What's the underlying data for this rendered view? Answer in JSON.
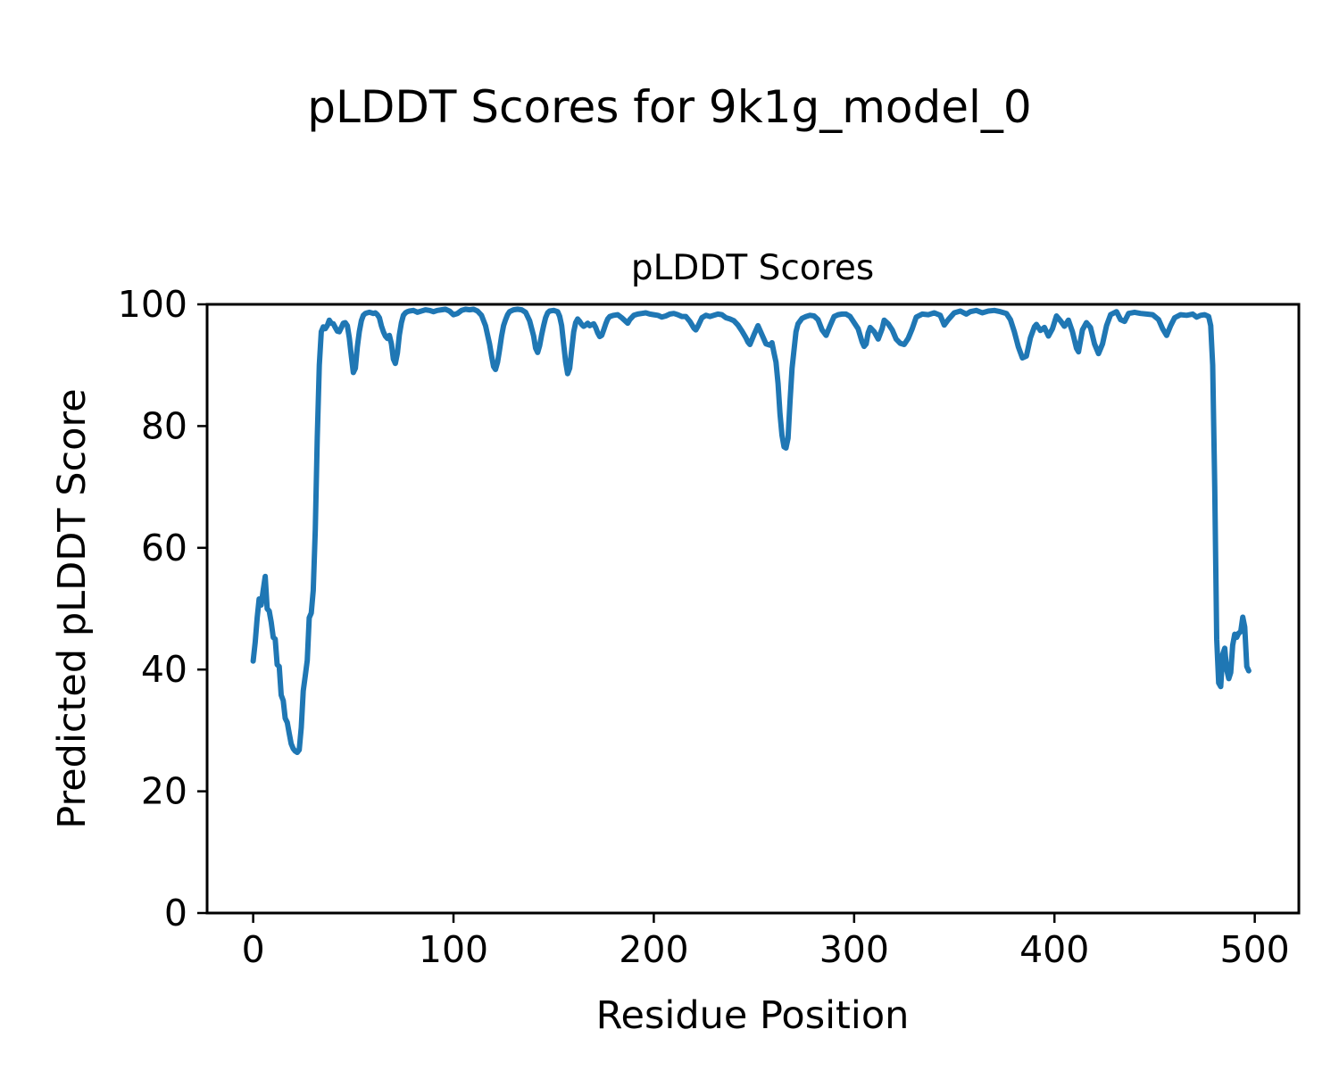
{
  "figure": {
    "suptitle": "pLDDT Scores for 9k1g_model_0",
    "background": "#ffffff",
    "text_color": "#000000"
  },
  "chart_data": {
    "type": "line",
    "title": "pLDDT Scores",
    "xlabel": "Residue Position",
    "ylabel": "Predicted pLDDT Score",
    "xlim": [
      -23,
      522
    ],
    "ylim": [
      0,
      100
    ],
    "xticks": [
      0,
      100,
      200,
      300,
      400,
      500
    ],
    "yticks": [
      0,
      20,
      40,
      60,
      80,
      100
    ],
    "grid": false,
    "legend": "none",
    "line_color": "#1f77b4",
    "line_width": 6,
    "series": [
      {
        "name": "pLDDT",
        "points": [
          [
            0,
            41.4
          ],
          [
            1,
            44.5
          ],
          [
            2,
            48.5
          ],
          [
            3,
            51.6
          ],
          [
            4,
            50.6
          ],
          [
            5,
            53.0
          ],
          [
            6,
            55.3
          ],
          [
            7,
            50.0
          ],
          [
            8,
            49.6
          ],
          [
            9,
            47.8
          ],
          [
            10,
            45.3
          ],
          [
            11,
            45.0
          ],
          [
            12,
            40.8
          ],
          [
            13,
            40.5
          ],
          [
            14,
            35.8
          ],
          [
            15,
            34.9
          ],
          [
            16,
            32.0
          ],
          [
            17,
            31.3
          ],
          [
            18,
            29.5
          ],
          [
            19,
            27.8
          ],
          [
            20,
            27.0
          ],
          [
            21,
            26.6
          ],
          [
            22,
            26.4
          ],
          [
            23,
            26.8
          ],
          [
            24,
            30.5
          ],
          [
            25,
            36.5
          ],
          [
            26,
            39.0
          ],
          [
            27,
            41.5
          ],
          [
            28,
            48.5
          ],
          [
            29,
            49.3
          ],
          [
            30,
            53.0
          ],
          [
            31,
            63.0
          ],
          [
            32,
            78.0
          ],
          [
            33,
            90.0
          ],
          [
            34,
            95.5
          ],
          [
            35,
            96.3
          ],
          [
            36,
            96.0
          ],
          [
            37,
            96.5
          ],
          [
            38,
            97.4
          ],
          [
            39,
            96.9
          ],
          [
            40,
            96.8
          ],
          [
            41,
            96.2
          ],
          [
            42,
            95.6
          ],
          [
            43,
            95.5
          ],
          [
            44,
            96.2
          ],
          [
            45,
            96.9
          ],
          [
            46,
            97.0
          ],
          [
            47,
            96.5
          ],
          [
            48,
            94.5
          ],
          [
            49,
            91.5
          ],
          [
            50,
            88.8
          ],
          [
            51,
            89.5
          ],
          [
            52,
            93.0
          ],
          [
            53,
            95.5
          ],
          [
            54,
            97.3
          ],
          [
            55,
            98.2
          ],
          [
            56,
            98.5
          ],
          [
            57,
            98.6
          ],
          [
            58,
            98.7
          ],
          [
            59,
            98.6
          ],
          [
            60,
            98.5
          ],
          [
            61,
            98.6
          ],
          [
            62,
            98.3
          ],
          [
            63,
            97.8
          ],
          [
            64,
            96.5
          ],
          [
            65,
            95.5
          ],
          [
            66,
            94.8
          ],
          [
            67,
            94.4
          ],
          [
            68,
            94.9
          ],
          [
            69,
            93.5
          ],
          [
            70,
            91.0
          ],
          [
            71,
            90.3
          ],
          [
            72,
            92.0
          ],
          [
            73,
            95.0
          ],
          [
            74,
            97.0
          ],
          [
            75,
            98.2
          ],
          [
            76,
            98.6
          ],
          [
            77,
            98.8
          ],
          [
            78,
            98.9
          ],
          [
            80,
            99.0
          ],
          [
            82,
            98.7
          ],
          [
            84,
            98.9
          ],
          [
            86,
            99.1
          ],
          [
            88,
            99.0
          ],
          [
            90,
            98.8
          ],
          [
            92,
            99.0
          ],
          [
            94,
            99.1
          ],
          [
            96,
            99.2
          ],
          [
            98,
            98.9
          ],
          [
            100,
            98.3
          ],
          [
            102,
            98.5
          ],
          [
            104,
            99.0
          ],
          [
            106,
            99.2
          ],
          [
            108,
            99.1
          ],
          [
            110,
            99.2
          ],
          [
            112,
            98.9
          ],
          [
            114,
            98.2
          ],
          [
            116,
            96.5
          ],
          [
            118,
            93.5
          ],
          [
            119,
            91.5
          ],
          [
            120,
            89.8
          ],
          [
            121,
            89.3
          ],
          [
            122,
            90.5
          ],
          [
            123,
            92.5
          ],
          [
            124,
            94.8
          ],
          [
            125,
            96.5
          ],
          [
            126,
            97.5
          ],
          [
            127,
            98.3
          ],
          [
            128,
            98.8
          ],
          [
            130,
            99.1
          ],
          [
            132,
            99.2
          ],
          [
            134,
            99.1
          ],
          [
            136,
            98.7
          ],
          [
            138,
            97.3
          ],
          [
            140,
            94.8
          ],
          [
            141,
            92.8
          ],
          [
            142,
            92.1
          ],
          [
            143,
            93.2
          ],
          [
            144,
            95.0
          ],
          [
            145,
            96.5
          ],
          [
            146,
            97.8
          ],
          [
            147,
            98.6
          ],
          [
            148,
            98.9
          ],
          [
            150,
            99.0
          ],
          [
            152,
            98.8
          ],
          [
            153,
            98.0
          ],
          [
            154,
            96.5
          ],
          [
            155,
            93.5
          ],
          [
            156,
            90.5
          ],
          [
            157,
            88.6
          ],
          [
            158,
            89.5
          ],
          [
            159,
            92.5
          ],
          [
            160,
            95.5
          ],
          [
            161,
            97.0
          ],
          [
            162,
            97.6
          ],
          [
            163,
            97.2
          ],
          [
            164,
            96.7
          ],
          [
            165,
            96.4
          ],
          [
            166,
            96.6
          ],
          [
            167,
            96.9
          ],
          [
            168,
            96.5
          ],
          [
            170,
            96.8
          ],
          [
            171,
            96.2
          ],
          [
            172,
            95.3
          ],
          [
            173,
            94.7
          ],
          [
            174,
            94.9
          ],
          [
            175,
            95.8
          ],
          [
            176,
            96.8
          ],
          [
            177,
            97.6
          ],
          [
            178,
            98.0
          ],
          [
            180,
            98.2
          ],
          [
            182,
            98.3
          ],
          [
            184,
            97.8
          ],
          [
            186,
            97.2
          ],
          [
            187,
            96.9
          ],
          [
            188,
            97.5
          ],
          [
            190,
            98.2
          ],
          [
            192,
            98.4
          ],
          [
            194,
            98.5
          ],
          [
            196,
            98.6
          ],
          [
            198,
            98.4
          ],
          [
            200,
            98.3
          ],
          [
            202,
            98.2
          ],
          [
            204,
            97.9
          ],
          [
            206,
            98.1
          ],
          [
            208,
            98.4
          ],
          [
            210,
            98.5
          ],
          [
            212,
            98.3
          ],
          [
            214,
            98.0
          ],
          [
            216,
            98.0
          ],
          [
            218,
            97.2
          ],
          [
            220,
            96.1
          ],
          [
            221,
            95.8
          ],
          [
            222,
            96.4
          ],
          [
            224,
            97.8
          ],
          [
            226,
            98.2
          ],
          [
            228,
            98.0
          ],
          [
            230,
            98.2
          ],
          [
            232,
            98.4
          ],
          [
            234,
            98.3
          ],
          [
            236,
            97.8
          ],
          [
            238,
            97.6
          ],
          [
            240,
            97.3
          ],
          [
            242,
            96.6
          ],
          [
            244,
            95.6
          ],
          [
            246,
            94.5
          ],
          [
            247,
            93.8
          ],
          [
            248,
            93.4
          ],
          [
            250,
            95.0
          ],
          [
            252,
            96.5
          ],
          [
            254,
            95.0
          ],
          [
            256,
            93.5
          ],
          [
            258,
            93.3
          ],
          [
            259,
            93.7
          ],
          [
            260,
            92.0
          ],
          [
            261,
            90.5
          ],
          [
            262,
            87.0
          ],
          [
            263,
            82.0
          ],
          [
            264,
            78.5
          ],
          [
            265,
            76.6
          ],
          [
            266,
            76.4
          ],
          [
            267,
            78.0
          ],
          [
            268,
            84.0
          ],
          [
            269,
            89.5
          ],
          [
            270,
            92.5
          ],
          [
            271,
            95.5
          ],
          [
            272,
            96.8
          ],
          [
            274,
            97.7
          ],
          [
            276,
            98.0
          ],
          [
            278,
            98.2
          ],
          [
            280,
            98.1
          ],
          [
            282,
            97.5
          ],
          [
            284,
            95.8
          ],
          [
            286,
            94.9
          ],
          [
            288,
            96.5
          ],
          [
            290,
            98.0
          ],
          [
            292,
            98.3
          ],
          [
            294,
            98.4
          ],
          [
            296,
            98.4
          ],
          [
            298,
            98.0
          ],
          [
            300,
            97.0
          ],
          [
            302,
            96.0
          ],
          [
            304,
            93.8
          ],
          [
            305,
            93.1
          ],
          [
            306,
            93.5
          ],
          [
            307,
            95.3
          ],
          [
            308,
            96.2
          ],
          [
            310,
            95.5
          ],
          [
            312,
            94.3
          ],
          [
            314,
            96.0
          ],
          [
            315,
            97.4
          ],
          [
            317,
            96.8
          ],
          [
            319,
            95.8
          ],
          [
            321,
            94.3
          ],
          [
            323,
            93.6
          ],
          [
            325,
            93.4
          ],
          [
            327,
            94.4
          ],
          [
            329,
            96.0
          ],
          [
            331,
            97.9
          ],
          [
            334,
            98.4
          ],
          [
            337,
            98.3
          ],
          [
            340,
            98.6
          ],
          [
            343,
            98.2
          ],
          [
            345,
            96.6
          ],
          [
            347,
            97.5
          ],
          [
            350,
            98.6
          ],
          [
            353,
            98.9
          ],
          [
            356,
            98.4
          ],
          [
            358,
            98.8
          ],
          [
            361,
            99.0
          ],
          [
            364,
            98.6
          ],
          [
            367,
            98.9
          ],
          [
            370,
            99.0
          ],
          [
            373,
            98.8
          ],
          [
            376,
            98.5
          ],
          [
            378,
            97.5
          ],
          [
            380,
            95.5
          ],
          [
            382,
            93.0
          ],
          [
            384,
            91.2
          ],
          [
            386,
            91.5
          ],
          [
            388,
            94.5
          ],
          [
            390,
            96.3
          ],
          [
            391,
            96.7
          ],
          [
            393,
            95.7
          ],
          [
            395,
            96.2
          ],
          [
            397,
            94.8
          ],
          [
            399,
            96.0
          ],
          [
            401,
            98.1
          ],
          [
            403,
            97.3
          ],
          [
            405,
            96.4
          ],
          [
            407,
            97.4
          ],
          [
            409,
            95.5
          ],
          [
            411,
            92.8
          ],
          [
            412,
            92.2
          ],
          [
            414,
            95.8
          ],
          [
            416,
            97.0
          ],
          [
            418,
            96.2
          ],
          [
            420,
            93.5
          ],
          [
            422,
            91.9
          ],
          [
            424,
            93.5
          ],
          [
            426,
            96.5
          ],
          [
            428,
            98.3
          ],
          [
            431,
            98.8
          ],
          [
            433,
            97.5
          ],
          [
            435,
            97.2
          ],
          [
            437,
            98.5
          ],
          [
            440,
            98.7
          ],
          [
            443,
            98.5
          ],
          [
            446,
            98.4
          ],
          [
            449,
            98.3
          ],
          [
            452,
            97.5
          ],
          [
            454,
            96.0
          ],
          [
            456,
            94.9
          ],
          [
            458,
            96.5
          ],
          [
            460,
            97.8
          ],
          [
            463,
            98.3
          ],
          [
            466,
            98.2
          ],
          [
            469,
            98.4
          ],
          [
            471,
            97.9
          ],
          [
            473,
            98.2
          ],
          [
            475,
            98.3
          ],
          [
            477,
            98.0
          ],
          [
            478,
            96.5
          ],
          [
            479,
            90.0
          ],
          [
            480,
            70.0
          ],
          [
            481,
            45.0
          ],
          [
            482,
            37.8
          ],
          [
            483,
            37.2
          ],
          [
            484,
            42.5
          ],
          [
            485,
            43.5
          ],
          [
            486,
            40.0
          ],
          [
            487,
            38.5
          ],
          [
            488,
            39.5
          ],
          [
            489,
            44.0
          ],
          [
            490,
            45.8
          ],
          [
            491,
            45.3
          ],
          [
            492,
            46.0
          ],
          [
            493,
            46.2
          ],
          [
            494,
            48.6
          ],
          [
            495,
            47.0
          ],
          [
            496,
            40.5
          ],
          [
            497,
            39.8
          ]
        ]
      }
    ]
  }
}
